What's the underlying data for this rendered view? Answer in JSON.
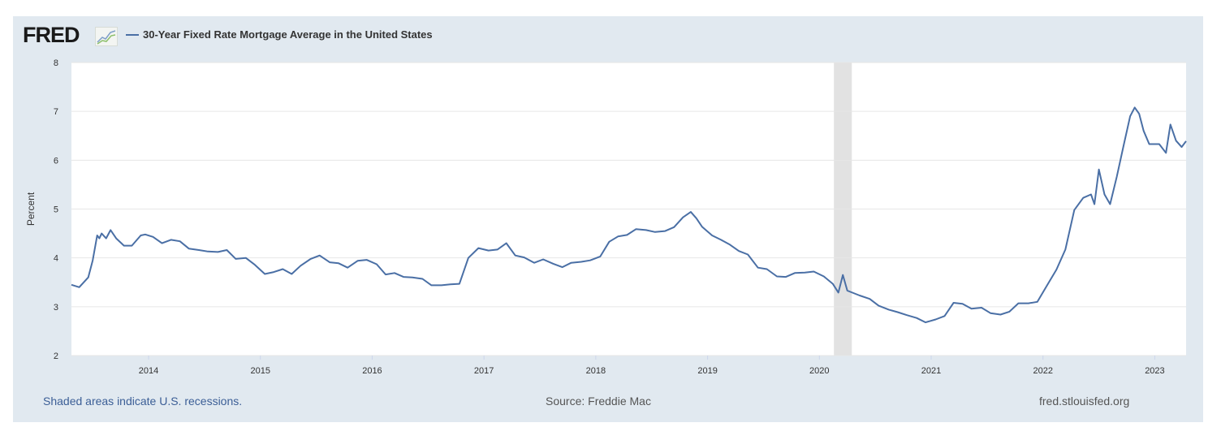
{
  "header": {
    "logo": "FRED",
    "series_title": "30-Year Fixed Rate Mortgage Average in the United States"
  },
  "footer": {
    "recessions_note": "Shaded areas indicate U.S. recessions.",
    "source": "Source: Freddie Mac",
    "site": "fred.stlouisfed.org"
  },
  "colors": {
    "line": "#4a6fa5",
    "panel": "#e1e9f0",
    "recession": "#e2e2e2"
  },
  "chart_data": {
    "type": "line",
    "title": "30-Year Fixed Rate Mortgage Average in the United States",
    "xlabel": "",
    "ylabel": "Percent",
    "ylim": [
      2,
      8
    ],
    "xlim": [
      2013.31,
      2023.28
    ],
    "yticks": [
      "2",
      "3",
      "4",
      "5",
      "6",
      "7",
      "8"
    ],
    "xticks": [
      "2014",
      "2015",
      "2016",
      "2017",
      "2018",
      "2019",
      "2020",
      "2021",
      "2022",
      "2023"
    ],
    "grid": true,
    "recessions": [
      [
        2020.13,
        2020.29
      ]
    ],
    "series": [
      {
        "name": "30-Year Fixed Rate Mortgage Average in the United States",
        "x": [
          2013.31,
          2013.38,
          2013.46,
          2013.5,
          2013.54,
          2013.56,
          2013.58,
          2013.62,
          2013.66,
          2013.71,
          2013.78,
          2013.85,
          2013.93,
          2013.97,
          2014.04,
          2014.12,
          2014.2,
          2014.28,
          2014.36,
          2014.45,
          2014.53,
          2014.62,
          2014.7,
          2014.78,
          2014.87,
          2014.95,
          2015.04,
          2015.12,
          2015.2,
          2015.28,
          2015.36,
          2015.45,
          2015.53,
          2015.62,
          2015.7,
          2015.78,
          2015.87,
          2015.95,
          2016.04,
          2016.12,
          2016.2,
          2016.28,
          2016.36,
          2016.45,
          2016.53,
          2016.62,
          2016.7,
          2016.78,
          2016.86,
          2016.95,
          2017.04,
          2017.12,
          2017.2,
          2017.28,
          2017.36,
          2017.45,
          2017.53,
          2017.62,
          2017.7,
          2017.78,
          2017.87,
          2017.95,
          2018.04,
          2018.12,
          2018.2,
          2018.28,
          2018.36,
          2018.45,
          2018.53,
          2018.62,
          2018.7,
          2018.78,
          2018.85,
          2018.9,
          2018.95,
          2019.04,
          2019.12,
          2019.2,
          2019.28,
          2019.36,
          2019.45,
          2019.53,
          2019.62,
          2019.7,
          2019.78,
          2019.87,
          2019.95,
          2020.04,
          2020.12,
          2020.17,
          2020.21,
          2020.25,
          2020.36,
          2020.45,
          2020.53,
          2020.62,
          2020.7,
          2020.78,
          2020.87,
          2020.95,
          2021.04,
          2021.12,
          2021.2,
          2021.28,
          2021.36,
          2021.45,
          2021.53,
          2021.62,
          2021.7,
          2021.78,
          2021.87,
          2021.95,
          2022.04,
          2022.12,
          2022.2,
          2022.28,
          2022.36,
          2022.43,
          2022.46,
          2022.5,
          2022.55,
          2022.6,
          2022.66,
          2022.72,
          2022.78,
          2022.82,
          2022.86,
          2022.9,
          2022.95,
          2023.04,
          2023.1,
          2023.14,
          2023.19,
          2023.24,
          2023.28
        ],
        "y": [
          3.45,
          3.4,
          3.6,
          3.95,
          4.46,
          4.4,
          4.5,
          4.4,
          4.57,
          4.4,
          4.25,
          4.25,
          4.46,
          4.48,
          4.43,
          4.3,
          4.37,
          4.34,
          4.19,
          4.16,
          4.13,
          4.12,
          4.16,
          3.98,
          4.0,
          3.86,
          3.67,
          3.71,
          3.77,
          3.67,
          3.84,
          3.98,
          4.05,
          3.91,
          3.89,
          3.8,
          3.94,
          3.96,
          3.87,
          3.66,
          3.69,
          3.61,
          3.6,
          3.57,
          3.44,
          3.44,
          3.46,
          3.47,
          4.0,
          4.2,
          4.15,
          4.17,
          4.3,
          4.05,
          4.01,
          3.9,
          3.97,
          3.88,
          3.81,
          3.9,
          3.92,
          3.95,
          4.03,
          4.33,
          4.44,
          4.47,
          4.59,
          4.57,
          4.53,
          4.55,
          4.63,
          4.83,
          4.94,
          4.81,
          4.64,
          4.46,
          4.37,
          4.27,
          4.14,
          4.07,
          3.8,
          3.77,
          3.62,
          3.61,
          3.69,
          3.7,
          3.72,
          3.62,
          3.47,
          3.29,
          3.65,
          3.33,
          3.23,
          3.16,
          3.02,
          2.94,
          2.89,
          2.83,
          2.77,
          2.68,
          2.74,
          2.81,
          3.08,
          3.06,
          2.96,
          2.98,
          2.87,
          2.84,
          2.9,
          3.07,
          3.07,
          3.1,
          3.45,
          3.76,
          4.17,
          4.98,
          5.23,
          5.3,
          5.1,
          5.81,
          5.3,
          5.1,
          5.66,
          6.29,
          6.9,
          7.08,
          6.95,
          6.6,
          6.33,
          6.33,
          6.15,
          6.73,
          6.4,
          6.27,
          6.39
        ]
      }
    ]
  }
}
